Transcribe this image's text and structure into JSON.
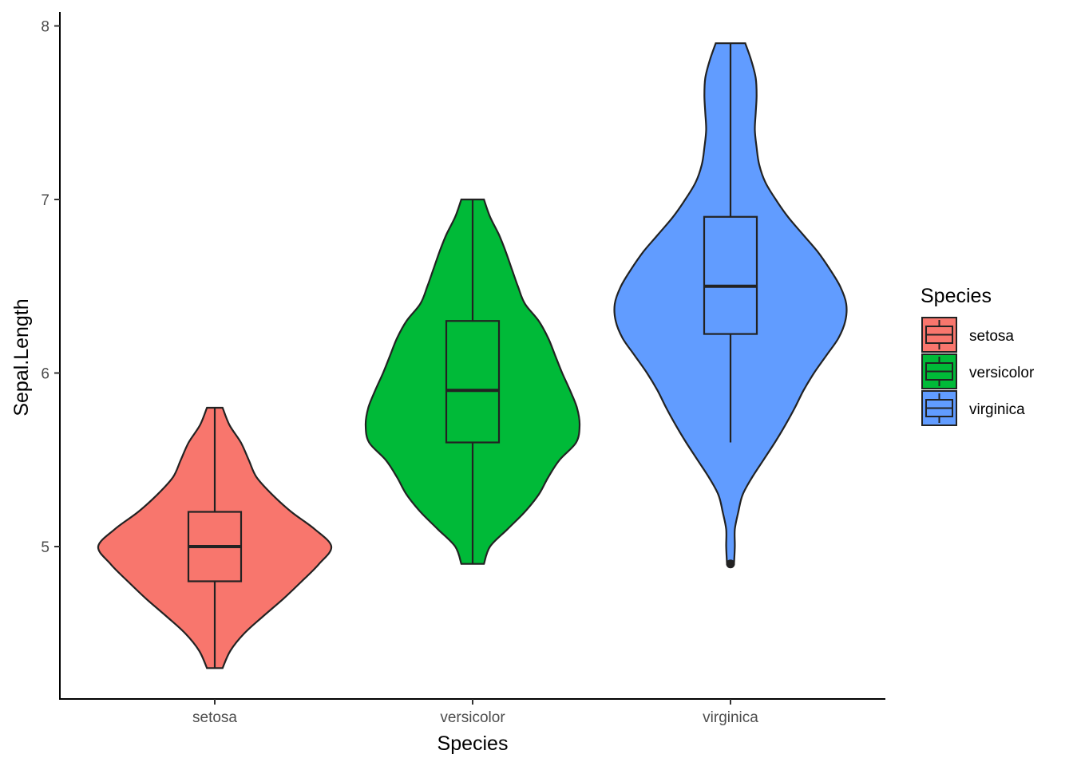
{
  "chart_data": {
    "type": "violin",
    "xlabel": "Species",
    "ylabel": "Sepal.Length",
    "ylim": [
      4.1,
      8.1
    ],
    "yticks": [
      5,
      6,
      7,
      8
    ],
    "categories": [
      "setosa",
      "versicolor",
      "virginica"
    ],
    "legend": {
      "title": "Species",
      "position": "right",
      "entries": [
        "setosa",
        "versicolor",
        "virginica"
      ]
    },
    "colors": {
      "setosa": "#F8766D",
      "versicolor": "#00BA38",
      "virginica": "#619CFF"
    },
    "series": [
      {
        "category": "setosa",
        "min": 4.3,
        "q1": 4.8,
        "median": 5.0,
        "q3": 5.2,
        "max": 5.8,
        "outliers": [],
        "density": [
          [
            4.3,
            0.09
          ],
          [
            4.4,
            0.18
          ],
          [
            4.5,
            0.34
          ],
          [
            4.6,
            0.56
          ],
          [
            4.7,
            0.79
          ],
          [
            4.8,
            1.0
          ],
          [
            4.9,
            1.2
          ],
          [
            5.0,
            1.34
          ],
          [
            5.1,
            1.15
          ],
          [
            5.2,
            0.88
          ],
          [
            5.3,
            0.66
          ],
          [
            5.4,
            0.48
          ],
          [
            5.5,
            0.39
          ],
          [
            5.6,
            0.3
          ],
          [
            5.7,
            0.17
          ],
          [
            5.8,
            0.09
          ]
        ]
      },
      {
        "category": "versicolor",
        "min": 4.9,
        "q1": 5.6,
        "median": 5.9,
        "q3": 6.3,
        "max": 7.0,
        "outliers": [],
        "density": [
          [
            4.9,
            0.13
          ],
          [
            5.0,
            0.2
          ],
          [
            5.1,
            0.4
          ],
          [
            5.2,
            0.6
          ],
          [
            5.3,
            0.76
          ],
          [
            5.4,
            0.87
          ],
          [
            5.5,
            1.0
          ],
          [
            5.6,
            1.19
          ],
          [
            5.7,
            1.23
          ],
          [
            5.8,
            1.2
          ],
          [
            5.9,
            1.12
          ],
          [
            6.0,
            1.03
          ],
          [
            6.1,
            0.95
          ],
          [
            6.2,
            0.87
          ],
          [
            6.3,
            0.76
          ],
          [
            6.4,
            0.6
          ],
          [
            6.5,
            0.52
          ],
          [
            6.6,
            0.45
          ],
          [
            6.7,
            0.38
          ],
          [
            6.8,
            0.3
          ],
          [
            6.9,
            0.2
          ],
          [
            7.0,
            0.13
          ]
        ]
      },
      {
        "category": "virginica",
        "min": 5.6,
        "q1": 6.225,
        "median": 6.5,
        "q3": 6.9,
        "max": 7.9,
        "outliers": [
          4.9
        ],
        "density": [
          [
            4.9,
            0.04
          ],
          [
            5.0,
            0.05
          ],
          [
            5.1,
            0.05
          ],
          [
            5.2,
            0.09
          ],
          [
            5.3,
            0.14
          ],
          [
            5.4,
            0.25
          ],
          [
            5.5,
            0.38
          ],
          [
            5.6,
            0.51
          ],
          [
            5.7,
            0.63
          ],
          [
            5.8,
            0.74
          ],
          [
            5.9,
            0.84
          ],
          [
            6.0,
            0.96
          ],
          [
            6.1,
            1.1
          ],
          [
            6.2,
            1.24
          ],
          [
            6.3,
            1.32
          ],
          [
            6.4,
            1.33
          ],
          [
            6.5,
            1.26
          ],
          [
            6.6,
            1.14
          ],
          [
            6.7,
            1.0
          ],
          [
            6.8,
            0.83
          ],
          [
            6.9,
            0.66
          ],
          [
            7.0,
            0.52
          ],
          [
            7.1,
            0.4
          ],
          [
            7.2,
            0.33
          ],
          [
            7.3,
            0.3
          ],
          [
            7.4,
            0.28
          ],
          [
            7.5,
            0.29
          ],
          [
            7.6,
            0.3
          ],
          [
            7.7,
            0.29
          ],
          [
            7.8,
            0.24
          ],
          [
            7.9,
            0.17
          ]
        ]
      }
    ]
  }
}
